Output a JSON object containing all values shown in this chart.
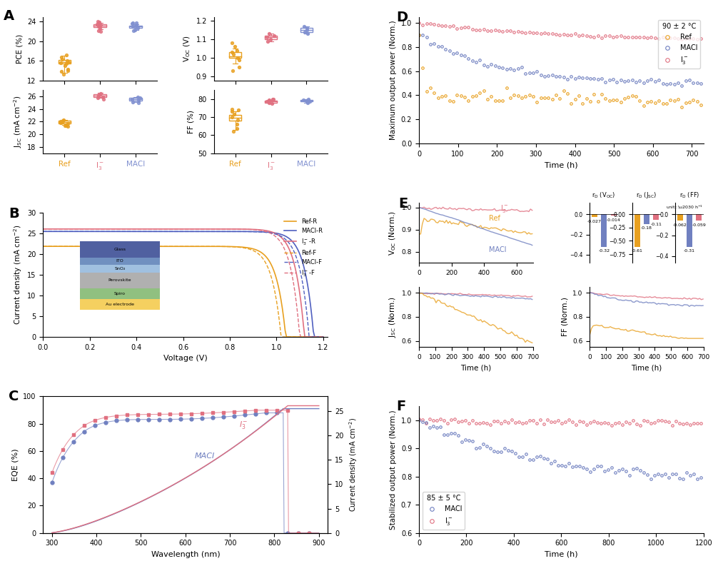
{
  "panel_A": {
    "box_data": {
      "PCE": {
        "Ref": {
          "median": 15.8,
          "q1": 15.4,
          "q3": 16.2,
          "whislo": 13.5,
          "whishi": 17.0,
          "fliers": [
            13.2,
            14.0,
            17.2
          ]
        },
        "I3": {
          "median": 23.2,
          "q1": 22.9,
          "q3": 23.5,
          "whislo": 22.5,
          "whishi": 23.8,
          "fliers": [
            22.0,
            24.0
          ]
        },
        "MACl": {
          "median": 23.0,
          "q1": 22.7,
          "q3": 23.2,
          "whislo": 22.3,
          "whishi": 23.5,
          "fliers": [
            22.1,
            23.7
          ]
        }
      },
      "VOC": {
        "Ref": {
          "median": 1.01,
          "q1": 1.0,
          "q3": 1.03,
          "whislo": 0.97,
          "whishi": 1.05,
          "fliers": [
            0.93,
            1.08
          ]
        },
        "I3": {
          "median": 1.11,
          "q1": 1.1,
          "q3": 1.12,
          "whislo": 1.09,
          "whishi": 1.13,
          "fliers": []
        },
        "MACl": {
          "median": 1.15,
          "q1": 1.14,
          "q3": 1.16,
          "whislo": 1.13,
          "whishi": 1.17,
          "fliers": []
        }
      },
      "JSC": {
        "Ref": {
          "median": 21.9,
          "q1": 21.7,
          "q3": 22.1,
          "whislo": 21.5,
          "whishi": 22.3,
          "fliers": [
            21.3,
            21.4
          ]
        },
        "I3": {
          "median": 26.1,
          "q1": 25.9,
          "q3": 26.3,
          "whislo": 25.7,
          "whishi": 26.5,
          "fliers": [
            25.5
          ]
        },
        "MACl": {
          "median": 25.5,
          "q1": 25.3,
          "q3": 25.7,
          "whislo": 25.1,
          "whishi": 25.9,
          "fliers": [
            25.0
          ]
        }
      },
      "FF": {
        "Ref": {
          "median": 69.5,
          "q1": 68.0,
          "q3": 71.0,
          "whislo": 63.0,
          "whishi": 73.0,
          "fliers": [
            62.0,
            74.5
          ]
        },
        "I3": {
          "median": 78.5,
          "q1": 78.0,
          "q3": 79.0,
          "whislo": 77.5,
          "whishi": 79.5,
          "fliers": [
            80.0
          ]
        },
        "MACl": {
          "median": 79.0,
          "q1": 78.5,
          "q3": 79.5,
          "whislo": 78.0,
          "whishi": 80.0,
          "fliers": []
        }
      }
    },
    "colors": {
      "Ref": "#E8A020",
      "I3": "#E07080",
      "MACl": "#8090D0"
    },
    "scatter_Ref_PCE": [
      14.2,
      15.0,
      15.5,
      15.6,
      15.8,
      16.0,
      16.3,
      16.8,
      13.8
    ],
    "scatter_I3_PCE": [
      22.2,
      22.8,
      23.0,
      23.1,
      23.3,
      23.5,
      23.7,
      23.9
    ],
    "scatter_MACl_PCE": [
      22.3,
      22.7,
      23.0,
      23.2,
      23.4,
      23.6,
      23.7
    ],
    "scatter_Ref_VOC": [
      0.95,
      0.99,
      1.0,
      1.02,
      1.03,
      1.04,
      1.06
    ],
    "scatter_I3_VOC": [
      1.09,
      1.1,
      1.11,
      1.12,
      1.13
    ],
    "scatter_MACl_VOC": [
      1.13,
      1.14,
      1.15,
      1.16,
      1.17
    ],
    "scatter_Ref_JSC": [
      21.4,
      21.7,
      21.8,
      21.9,
      22.0,
      22.2,
      22.3
    ],
    "scatter_I3_JSC": [
      25.7,
      25.9,
      26.0,
      26.2,
      26.4
    ],
    "scatter_MACl_JSC": [
      25.1,
      25.3,
      25.5,
      25.7,
      25.9
    ],
    "scatter_Ref_FF": [
      63.5,
      66.0,
      68.5,
      70.0,
      71.5,
      73.0,
      74.0
    ],
    "scatter_I3_FF": [
      77.5,
      78.0,
      78.5,
      79.0,
      79.5,
      80.0
    ],
    "scatter_MACl_FF": [
      78.0,
      78.5,
      79.0,
      79.5,
      80.0
    ]
  },
  "panel_B": {
    "colors": {
      "Ref_R": "#E8A020",
      "MACl_R": "#5060C0",
      "I3_R": "#E07080",
      "Ref_F": "#E8A020",
      "MACl_F": "#5060C0",
      "I3_F": "#E07080"
    },
    "layer_colors": [
      "#F5D060",
      "#90C080",
      "#B0B0B0",
      "#A0C0E0",
      "#7090C0",
      "#5060A0"
    ],
    "layer_labels": [
      "Au electrode",
      "Spiro",
      "Perovskite",
      "SnO₂",
      "ITO",
      "Glass"
    ]
  },
  "panel_C": {
    "MACI_color": "#7080C0",
    "I3_color": "#E07080",
    "J_color": "#7080C0"
  },
  "panel_D": {
    "title": "90 ± 2 °C",
    "colors": {
      "Ref": "#E8A020",
      "MACl": "#7080C0",
      "I3": "#E07080"
    },
    "ylim": [
      0,
      1.05
    ],
    "xlim": [
      0,
      730
    ]
  },
  "panel_E": {
    "bar_colors": {
      "Ref": "#E8A020",
      "MACl": "#7080C0",
      "I3": "#E07080"
    },
    "rD_VOC": {
      "Ref": -0.027,
      "MACl": -0.32,
      "I3": -0.014
    },
    "rD_JSC": {
      "Ref": -0.61,
      "MACl": -0.18,
      "I3": -0.11
    },
    "rD_FF": {
      "Ref": -0.062,
      "MACl": -0.31,
      "I3": -0.059
    }
  },
  "panel_F": {
    "title": "85 ± 5 °C",
    "colors": {
      "MACl": "#7080C0",
      "I3": "#E07080"
    },
    "ylim": [
      0.6,
      1.05
    ],
    "xlim": [
      0,
      1200
    ]
  },
  "bg_color": "#FFFFFF",
  "label_fontsize": 10,
  "tick_fontsize": 8,
  "panel_label_fontsize": 14
}
